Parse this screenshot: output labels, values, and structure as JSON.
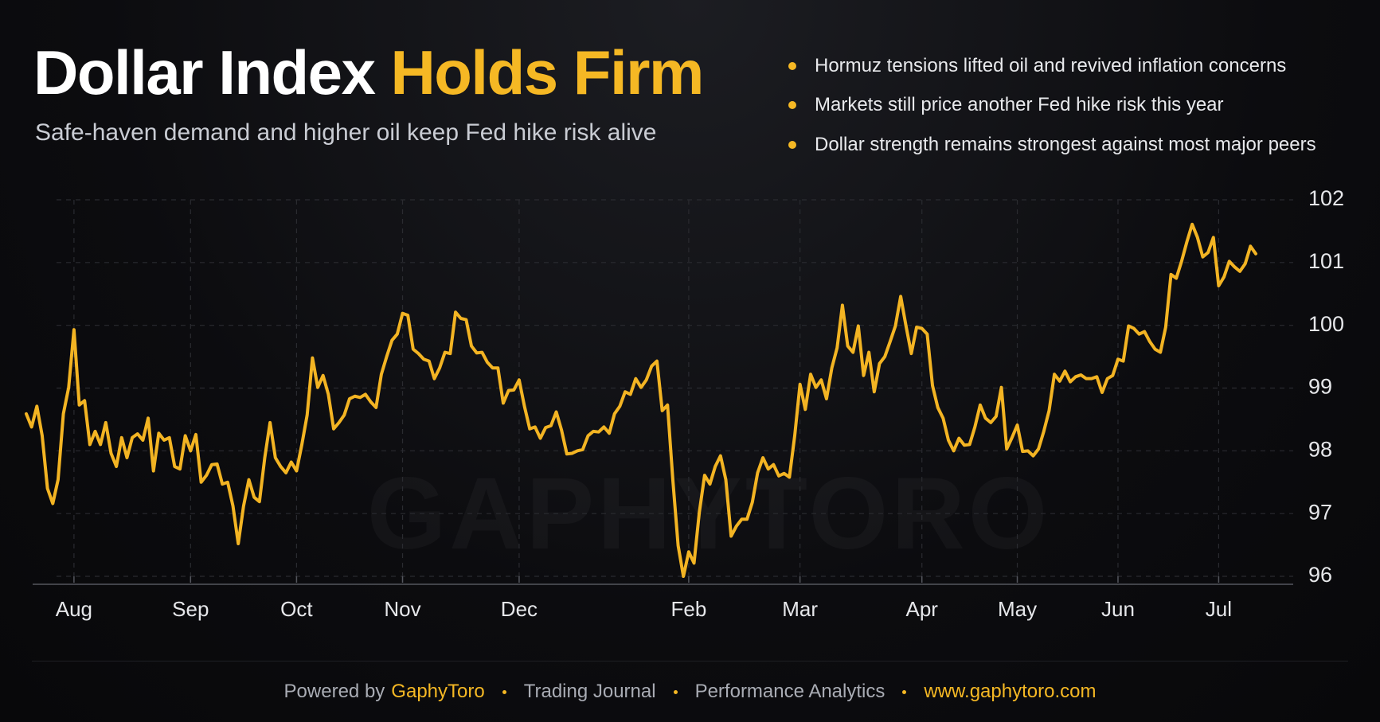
{
  "header": {
    "title": "Dollar Index",
    "title_highlight": "Holds Firm",
    "subtitle": "Safe-haven demand and higher oil keep Fed hike risk alive",
    "bullets": [
      "Hormuz tensions lifted oil and revived inflation concerns",
      "Markets still price another Fed hike risk this year",
      "Dollar strength remains strongest against most major peers"
    ]
  },
  "chart_data": {
    "type": "line",
    "color": "#f3b423",
    "grid": true,
    "watermark": "GAPHYTORO",
    "ylim": [
      96,
      102
    ],
    "yticks": [
      96,
      97,
      98,
      99,
      100,
      101,
      102
    ],
    "categories": [
      null,
      null,
      null,
      null,
      null,
      null,
      null,
      null,
      null,
      "Aug",
      null,
      null,
      null,
      null,
      null,
      null,
      null,
      null,
      null,
      null,
      null,
      null,
      null,
      null,
      null,
      null,
      null,
      null,
      null,
      null,
      null,
      "Sep",
      null,
      null,
      null,
      null,
      null,
      null,
      null,
      null,
      null,
      null,
      null,
      null,
      null,
      null,
      null,
      null,
      null,
      null,
      null,
      "Oct",
      null,
      null,
      null,
      null,
      null,
      null,
      null,
      null,
      null,
      null,
      null,
      null,
      null,
      null,
      null,
      null,
      null,
      null,
      null,
      "Nov",
      null,
      null,
      null,
      null,
      null,
      null,
      null,
      null,
      null,
      null,
      null,
      null,
      null,
      null,
      null,
      null,
      null,
      null,
      null,
      null,
      null,
      "Dec",
      null,
      null,
      null,
      null,
      null,
      null,
      null,
      null,
      null,
      null,
      null,
      null,
      null,
      null,
      null,
      null,
      null,
      null,
      null,
      null,
      null,
      null,
      null,
      null,
      null,
      null,
      null,
      null,
      null,
      null,
      null,
      "Feb",
      null,
      null,
      null,
      null,
      null,
      null,
      null,
      null,
      null,
      null,
      null,
      null,
      null,
      null,
      null,
      null,
      null,
      null,
      null,
      null,
      "Mar",
      null,
      null,
      null,
      null,
      null,
      null,
      null,
      null,
      null,
      null,
      null,
      null,
      null,
      null,
      null,
      null,
      null,
      null,
      null,
      null,
      null,
      null,
      "Apr",
      null,
      null,
      null,
      null,
      null,
      null,
      null,
      null,
      null,
      null,
      null,
      null,
      null,
      null,
      null,
      null,
      null,
      "May",
      null,
      null,
      null,
      null,
      null,
      null,
      null,
      null,
      null,
      null,
      null,
      null,
      null,
      null,
      null,
      null,
      null,
      null,
      "Jun",
      null,
      null,
      null,
      null,
      null,
      null,
      null,
      null,
      null,
      null,
      null,
      null,
      null,
      null,
      null,
      null,
      null,
      null,
      "Jul",
      null,
      null,
      null,
      null,
      null,
      null,
      null
    ],
    "values": [
      98.59,
      98.38,
      98.71,
      98.24,
      97.4,
      97.16,
      97.54,
      98.59,
      99.01,
      99.93,
      98.73,
      98.8,
      98.1,
      98.31,
      98.1,
      98.45,
      97.96,
      97.75,
      98.21,
      97.89,
      98.21,
      98.27,
      98.17,
      98.52,
      97.68,
      98.28,
      98.17,
      98.21,
      97.75,
      97.71,
      98.24,
      98.0,
      98.26,
      97.5,
      97.61,
      97.78,
      97.79,
      97.47,
      97.5,
      97.12,
      96.52,
      97.12,
      97.54,
      97.26,
      97.19,
      97.89,
      98.45,
      97.89,
      97.75,
      97.65,
      97.82,
      97.68,
      98.1,
      98.57,
      99.48,
      99.01,
      99.2,
      98.9,
      98.35,
      98.45,
      98.57,
      98.83,
      98.87,
      98.85,
      98.9,
      98.78,
      98.69,
      99.22,
      99.5,
      99.76,
      99.86,
      100.19,
      100.16,
      99.62,
      99.55,
      99.46,
      99.43,
      99.15,
      99.32,
      99.57,
      99.55,
      100.21,
      100.11,
      100.09,
      99.67,
      99.56,
      99.57,
      99.41,
      99.32,
      99.32,
      98.76,
      98.96,
      98.97,
      99.13,
      98.71,
      98.35,
      98.38,
      98.2,
      98.37,
      98.4,
      98.62,
      98.33,
      97.95,
      97.96,
      98.0,
      98.02,
      98.24,
      98.31,
      98.3,
      98.38,
      98.28,
      98.59,
      98.71,
      98.94,
      98.9,
      99.15,
      99.01,
      99.13,
      99.35,
      99.43,
      98.64,
      98.73,
      97.54,
      96.49,
      96.0,
      96.39,
      96.21,
      97.02,
      97.61,
      97.47,
      97.75,
      97.92,
      97.54,
      96.64,
      96.8,
      96.91,
      96.91,
      97.18,
      97.65,
      97.89,
      97.71,
      97.78,
      97.6,
      97.64,
      97.58,
      98.24,
      99.06,
      98.66,
      99.22,
      99.01,
      99.13,
      98.83,
      99.32,
      99.64,
      100.32,
      99.67,
      99.57,
      99.99,
      99.2,
      99.57,
      98.94,
      99.39,
      99.5,
      99.74,
      99.99,
      100.46,
      99.99,
      99.55,
      99.97,
      99.95,
      99.86,
      99.04,
      98.69,
      98.52,
      98.17,
      98.0,
      98.2,
      98.09,
      98.1,
      98.38,
      98.73,
      98.52,
      98.45,
      98.55,
      99.01,
      98.03,
      98.21,
      98.41,
      97.99,
      98.0,
      97.92,
      98.03,
      98.31,
      98.64,
      99.22,
      99.11,
      99.27,
      99.1,
      99.18,
      99.21,
      99.15,
      99.15,
      99.18,
      98.93,
      99.15,
      99.2,
      99.46,
      99.43,
      99.99,
      99.95,
      99.86,
      99.9,
      99.74,
      99.62,
      99.57,
      99.97,
      100.81,
      100.75,
      101.02,
      101.33,
      101.61,
      101.4,
      101.09,
      101.16,
      101.4,
      100.63,
      100.77,
      101.02,
      100.93,
      100.86,
      100.98,
      101.26,
      101.14
    ]
  },
  "footer": {
    "powered_by": "Powered by",
    "brand": "GaphyToro",
    "items": [
      "Trading Journal",
      "Performance Analytics"
    ],
    "url": "www.gaphytoro.com"
  }
}
